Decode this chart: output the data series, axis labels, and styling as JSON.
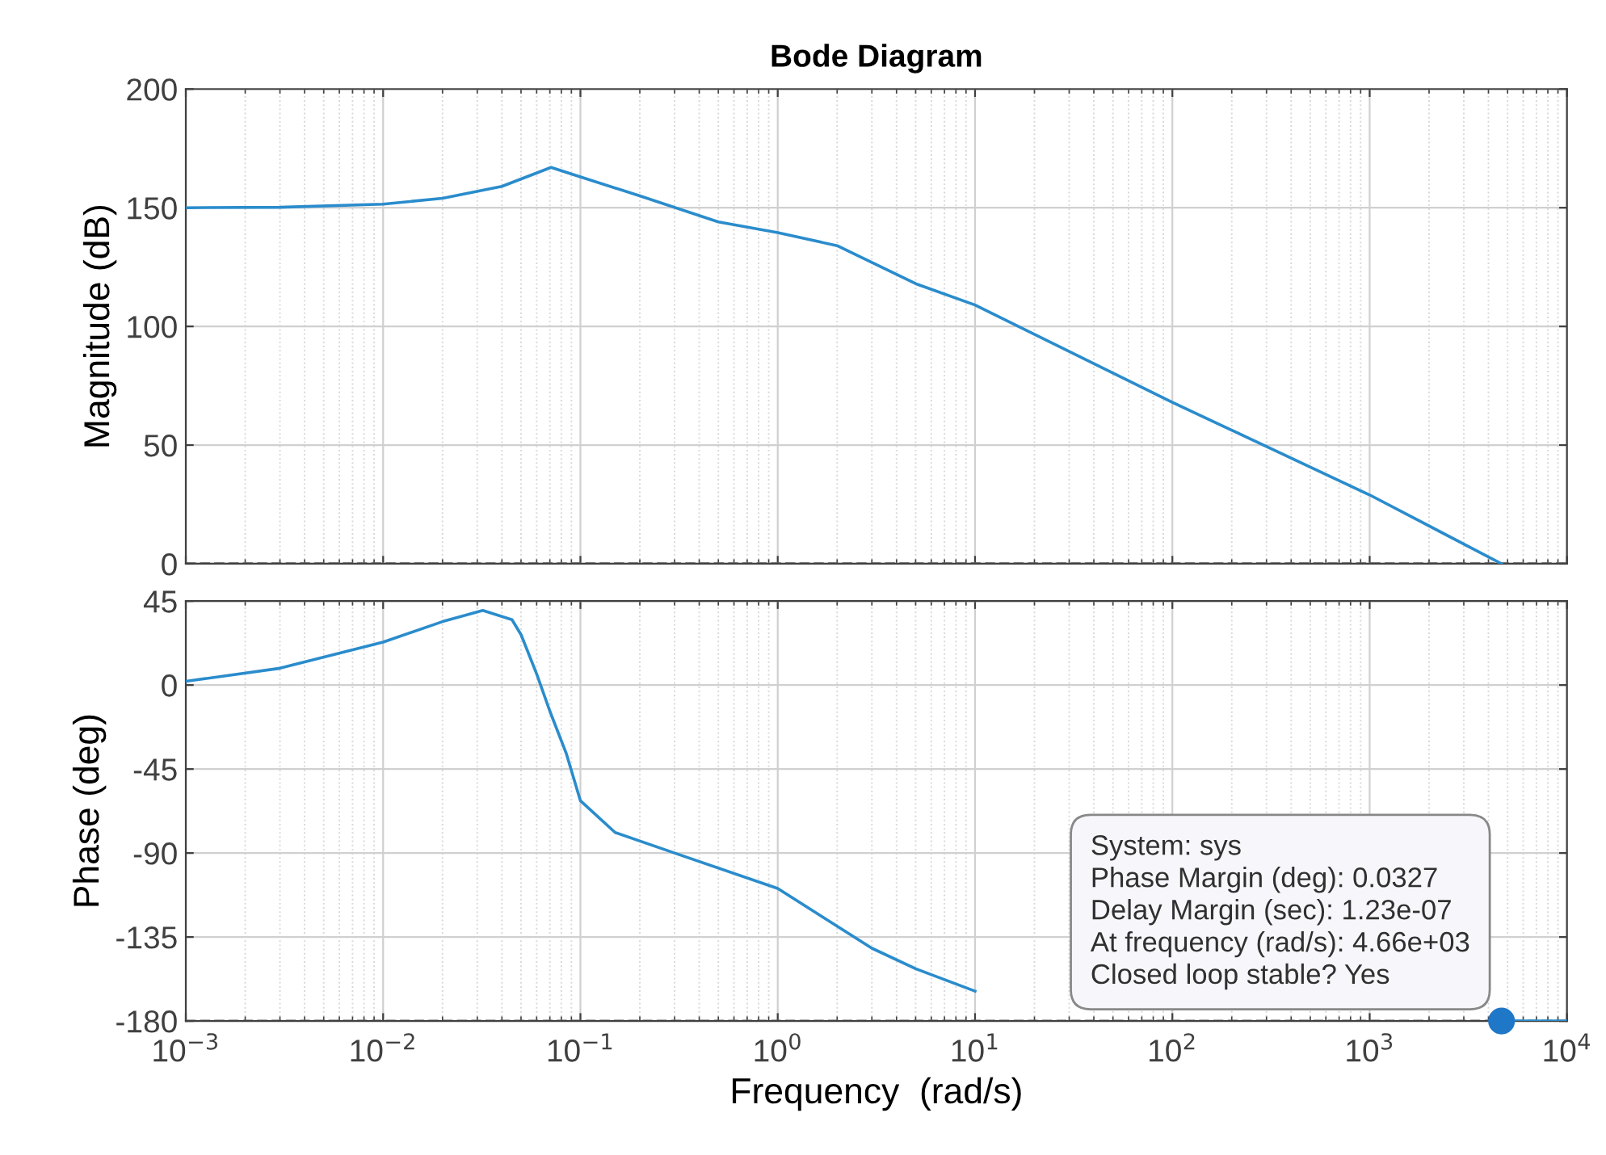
{
  "chart_data": [
    {
      "type": "line",
      "title": "Bode Diagram",
      "ylabel": "Magnitude (dB)",
      "xlim": [
        0.001,
        10000
      ],
      "xticks": [
        {
          "value": 0.001,
          "label": null
        },
        {
          "value": 0.01,
          "label": null
        },
        {
          "value": 0.1,
          "label": null
        },
        {
          "value": 1,
          "label": null
        },
        {
          "value": 10,
          "label": null
        },
        {
          "value": 100,
          "label": null
        },
        {
          "value": 1000,
          "label": null
        },
        {
          "value": 10000,
          "label": null
        }
      ],
      "log": "x",
      "ylim": [
        0,
        200
      ],
      "yticks": [
        0,
        50,
        100,
        150,
        200
      ],
      "tick_labels": "y",
      "grid": true,
      "ref_lines": [
        {
          "axis": "y",
          "value": 0,
          "color": "#606060",
          "line_style": "dashed"
        }
      ],
      "series": [
        {
          "color": "#2a8ccc",
          "x": [
            0.001,
            0.003,
            0.01,
            0.02,
            0.04,
            0.071,
            0.1,
            0.2,
            0.5,
            1,
            2,
            5,
            10,
            100,
            1000,
            4660
          ],
          "values": [
            150,
            150.2,
            151.5,
            154,
            159,
            167,
            163,
            155,
            144,
            139.5,
            134,
            118,
            109,
            68,
            29,
            0
          ]
        }
      ]
    },
    {
      "type": "line",
      "xlabel": "Frequency  (rad/s)",
      "ylabel": "Phase (deg)",
      "xlim": [
        0.001,
        10000
      ],
      "xticks": [
        {
          "value": 0.001,
          "label": "10$^{−3}$"
        },
        {
          "value": 0.01,
          "label": "10$^{−2}$"
        },
        {
          "value": 0.1,
          "label": "10$^{−1}$"
        },
        {
          "value": 1,
          "label": "10$^{0}$"
        },
        {
          "value": 10,
          "label": "10$^{1}$"
        },
        {
          "value": 100,
          "label": "10$^{2}$"
        },
        {
          "value": 1000,
          "label": "10$^{3}$"
        },
        {
          "value": 10000,
          "label": "10$^{4}$"
        }
      ],
      "log": "x",
      "ylim": [
        -180,
        45
      ],
      "yticks": [
        -180,
        -135,
        -90,
        -45,
        0,
        45
      ],
      "grid": true,
      "ref_lines": [
        {
          "axis": "y",
          "value": -180,
          "color": "#606060",
          "line_style": "dashed"
        }
      ],
      "series": [
        {
          "color": "#2a8ccc",
          "x": [
            0.001,
            0.003,
            0.01,
            0.02,
            0.032,
            0.045,
            0.05,
            0.06,
            0.07,
            0.085,
            0.1,
            0.15,
            0.3,
            1,
            3,
            5,
            10,
            11,
            3000,
            4660,
            10000
          ],
          "values": [
            2,
            9,
            23,
            34,
            40,
            35,
            27,
            6,
            -14,
            -37,
            -62,
            -79,
            -90,
            -109,
            -141,
            -152,
            -164,
            null,
            null,
            -180,
            -180
          ]
        },
        {
          "type": "scatter",
          "marker": "circle",
          "color": "#1f77c8",
          "x": [
            4660
          ],
          "values": [
            -180
          ]
        }
      ],
      "annotations": [
        {
          "text": "System: sys\nPhase Margin (deg): 0.0327\nDelay Margin (sec): 1.23e-07\nAt frequency (rad/s): 4.66e+03\nClosed loop stable? Yes",
          "x": 4660,
          "y": -180
        }
      ]
    }
  ]
}
